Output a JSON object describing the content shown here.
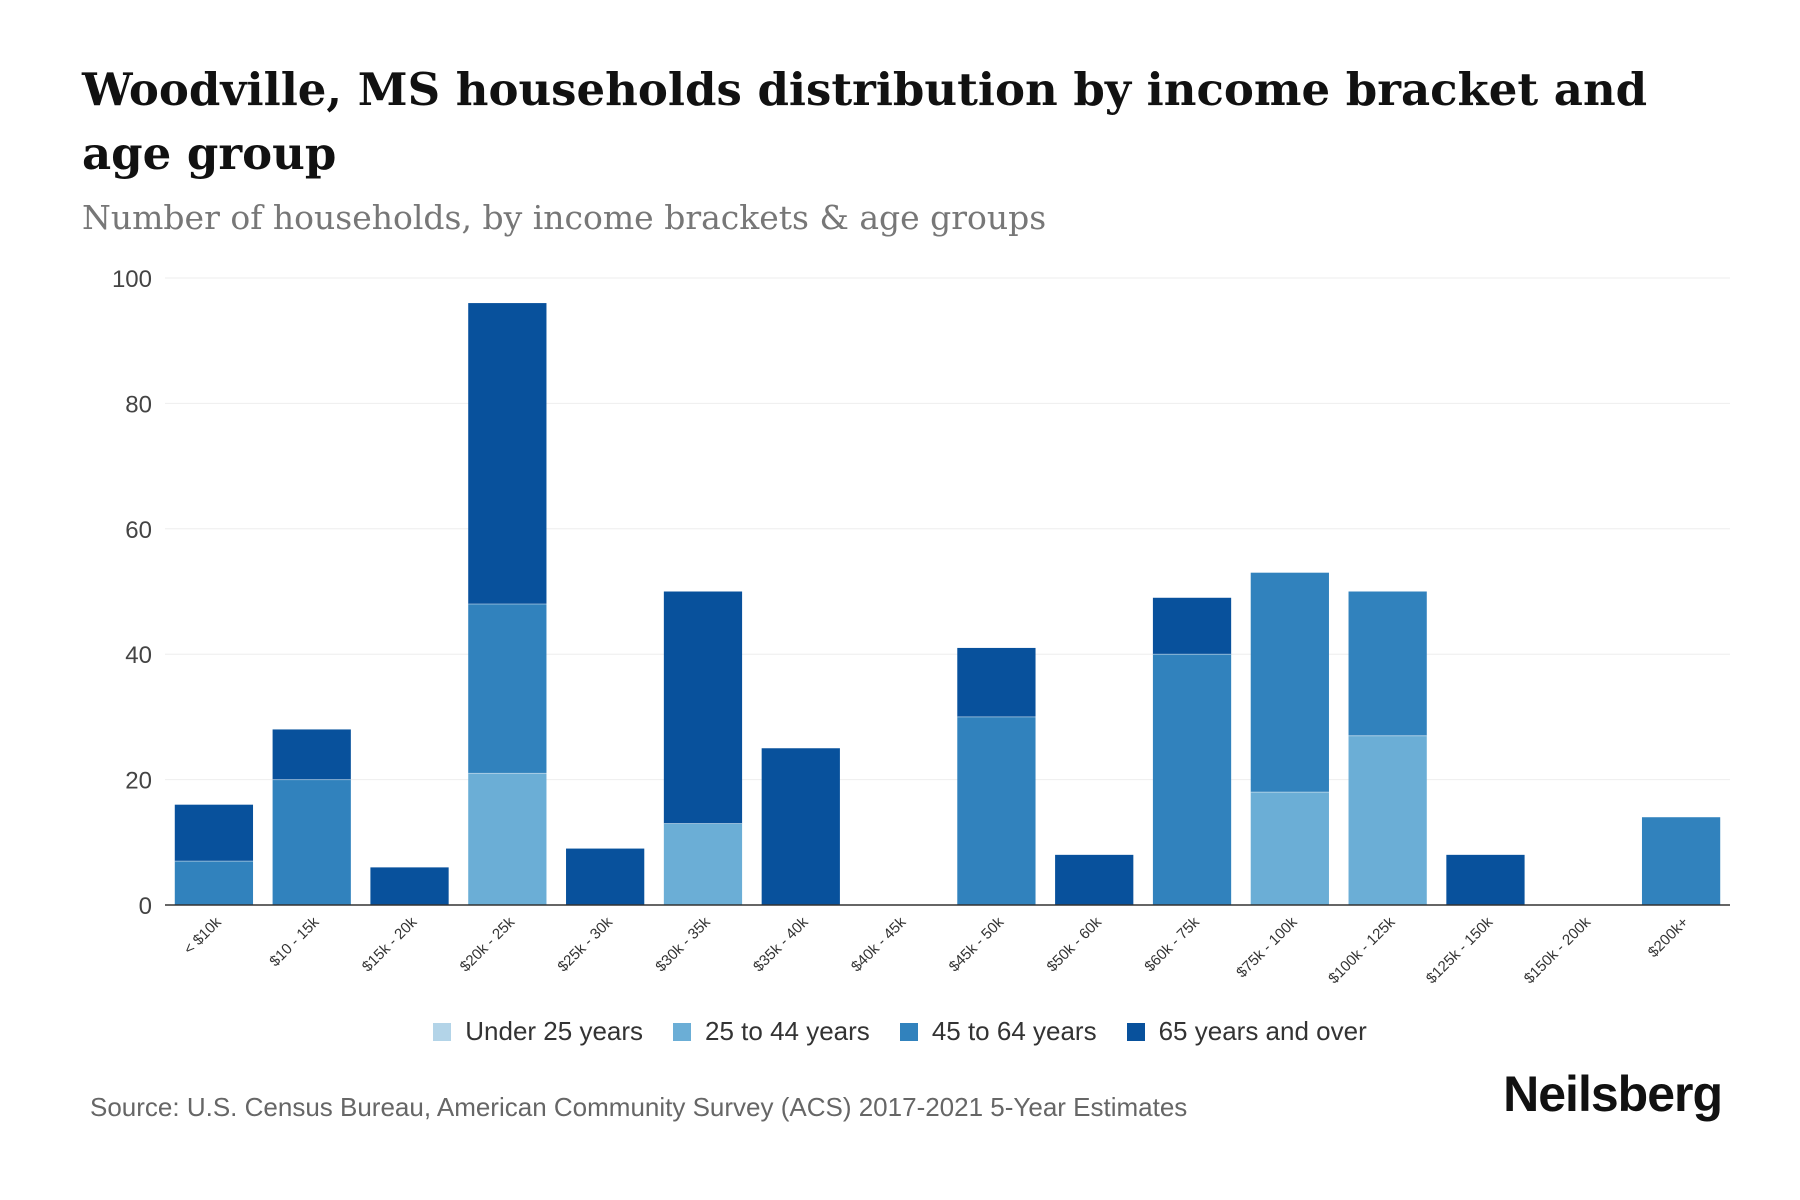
{
  "header": {
    "title": "Woodville, MS households distribution by income bracket and age group",
    "subtitle": "Number of households, by income brackets & age groups"
  },
  "footer": {
    "source": "Source: U.S. Census Bureau, American Community Survey (ACS) 2017-2021 5-Year Estimates",
    "brand": "Neilsberg"
  },
  "colors": {
    "under_25": "#b3d4e8",
    "age_25_44": "#6baed6",
    "age_45_64": "#3182bd",
    "age_65_plus": "#08519c",
    "gridline": "#eeeeee",
    "axis": "#333333"
  },
  "chart_data": {
    "type": "bar",
    "stacked": true,
    "title": "Woodville, MS households distribution by income bracket and age group",
    "subtitle": "Number of households, by income brackets & age groups",
    "xlabel": "",
    "ylabel": "",
    "ylim": [
      0,
      100
    ],
    "yticks": [
      0,
      20,
      40,
      60,
      80,
      100
    ],
    "grid": true,
    "legend_position": "bottom",
    "categories": [
      "< $10k",
      "$10 - 15k",
      "$15k - 20k",
      "$20k - 25k",
      "$25k - 30k",
      "$30k - 35k",
      "$35k - 40k",
      "$40k - 45k",
      "$45k - 50k",
      "$50k - 60k",
      "$60k - 75k",
      "$75k - 100k",
      "$100k - 125k",
      "$125k - 150k",
      "$150k - 200k",
      "$200k+"
    ],
    "series": [
      {
        "name": "Under 25 years",
        "color": "#b3d4e8",
        "values": [
          0,
          0,
          0,
          0,
          0,
          0,
          0,
          0,
          0,
          0,
          0,
          0,
          0,
          0,
          0,
          0
        ]
      },
      {
        "name": "25 to 44 years",
        "color": "#6baed6",
        "values": [
          0,
          0,
          0,
          21,
          0,
          13,
          0,
          0,
          0,
          0,
          0,
          18,
          27,
          0,
          0,
          0
        ]
      },
      {
        "name": "45 to 64 years",
        "color": "#3182bd",
        "values": [
          7,
          20,
          0,
          27,
          0,
          0,
          0,
          0,
          30,
          0,
          40,
          35,
          23,
          0,
          0,
          14
        ]
      },
      {
        "name": "65 years and over",
        "color": "#08519c",
        "values": [
          9,
          8,
          6,
          48,
          9,
          37,
          25,
          0,
          11,
          8,
          9,
          0,
          0,
          8,
          0,
          0
        ]
      }
    ]
  }
}
